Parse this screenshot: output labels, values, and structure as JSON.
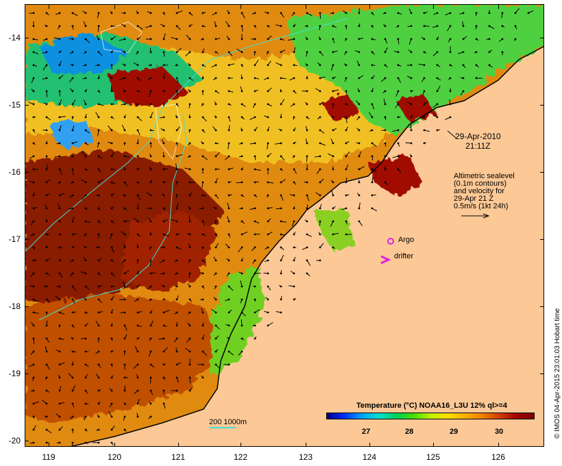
{
  "map": {
    "y_axis_ticks": [
      "-14",
      "-15",
      "-16",
      "-17",
      "-18",
      "-19",
      "-20"
    ],
    "x_axis_ticks": [
      "119",
      "120",
      "121",
      "122",
      "123",
      "124",
      "125",
      "126"
    ],
    "date_line1": "29-Apr-2010",
    "date_line2": "21:11Z",
    "info_lines": [
      "Altimetric sealevel",
      "(0.1m contours)",
      "and velocity for",
      "29-Apr 21 Z",
      "0.5m/s (1kt 24h)"
    ],
    "argo_label": "Argo",
    "drifter_label": "drifter",
    "legend_title": "Temperature (°C) NOAA16_L3U 12% ql>=4",
    "colorbar_ticks": [
      "27",
      "28",
      "29",
      "30"
    ],
    "bathy_label": "200  1000m",
    "credit": "© IMOS 04-Apr-2015 23:01:03 Hobart time",
    "colors": {
      "land": "#fbc896",
      "warm": "#a00000",
      "mid": "#f0a020",
      "cool": "#40d040",
      "cold": "#0090ff",
      "argo_marker": "#e020e0",
      "drifter_marker": "#e020e0",
      "contour": "#40e0d0"
    },
    "icons": [
      "argo-circle-icon",
      "drifter-chevron-icon",
      "velocity-arrow-icon"
    ]
  }
}
